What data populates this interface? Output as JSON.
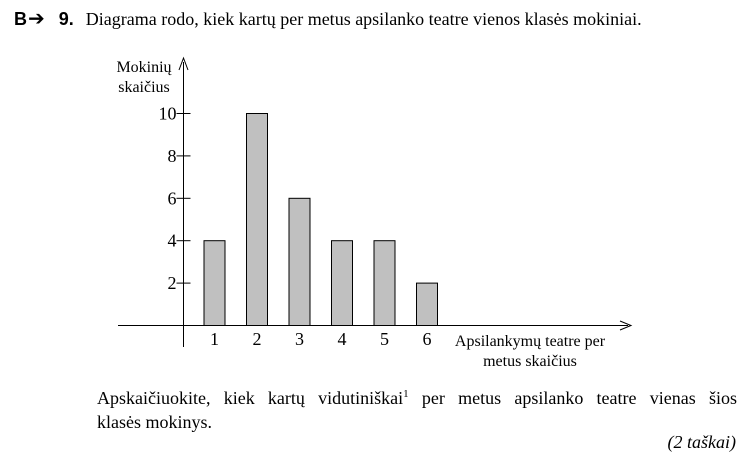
{
  "header": {
    "section": "B",
    "arrow_icon": "right-arrow-icon",
    "number": "9.",
    "title": "Diagrama rodo, kiek kartų per metus apsilanko teatre vienos klasės mokiniai."
  },
  "chart_data": {
    "type": "bar",
    "categories": [
      "1",
      "2",
      "3",
      "4",
      "5",
      "6"
    ],
    "values": [
      4,
      10,
      6,
      4,
      4,
      2
    ],
    "ylabel": [
      "Mokinių",
      "skaičius"
    ],
    "xlabel": [
      "Apsilankymų teatre per",
      "metus skaičius"
    ],
    "yticks": [
      2,
      4,
      6,
      8,
      10
    ],
    "ylim": [
      0,
      12
    ],
    "bar_color": "#c0c0c0",
    "grid": false
  },
  "question": {
    "line1_before": "Apskaičiuokite, kiek kartų vidutiniškai",
    "footnote_mark": "1",
    "line1_after": " per metus apsilanko teatre vienas šios",
    "line2": "klasės mokinys."
  },
  "points": "(2 taškai)"
}
